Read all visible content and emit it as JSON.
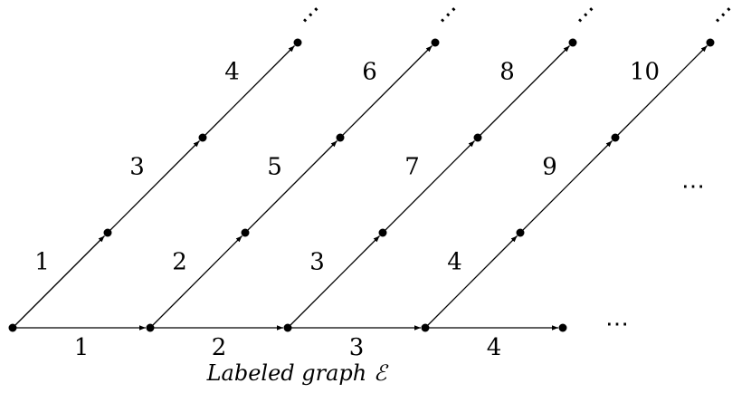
{
  "caption": "Labeled graph ℰ",
  "ellipsis": "⋯",
  "bottom_edge_labels": [
    "1",
    "2",
    "3",
    "4"
  ],
  "diagonal_chains": [
    {
      "labels": [
        "1",
        "3",
        "4"
      ]
    },
    {
      "labels": [
        "2",
        "5",
        "6"
      ]
    },
    {
      "labels": [
        "3",
        "7",
        "8"
      ]
    },
    {
      "labels": [
        "4",
        "9",
        "10"
      ]
    }
  ]
}
